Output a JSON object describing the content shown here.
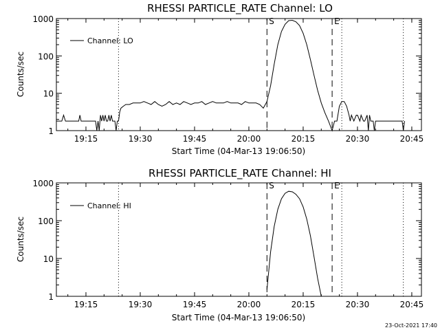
{
  "footer": {
    "timestamp": "23-Oct-2021 17:40"
  },
  "chart_data": [
    {
      "type": "line",
      "title": "RHESSI PARTICLE_RATE Channel: LO",
      "xlabel": "Start Time (04-Mar-13 19:06:50)",
      "ylabel": "Counts/sec",
      "yscale": "log",
      "ylim": [
        1,
        1000
      ],
      "xlim": [
        "19:06:50",
        "20:47:40"
      ],
      "x_ticks": [
        "19:15",
        "19:30",
        "19:45",
        "20:00",
        "20:15",
        "20:30",
        "20:45"
      ],
      "y_ticks": [
        "1",
        "10",
        "100",
        "1000"
      ],
      "legend": {
        "position": "top-left",
        "entries": [
          "Channel: LO"
        ]
      },
      "markers": [
        {
          "time": "19:24:00",
          "style": "dotted",
          "label": ""
        },
        {
          "time": "20:05:00",
          "style": "dashed",
          "label": "S"
        },
        {
          "time": "20:23:00",
          "style": "dashed",
          "label": "E"
        },
        {
          "time": "20:25:40",
          "style": "dotted",
          "label": ""
        },
        {
          "time": "20:42:40",
          "style": "dotted",
          "label": ""
        }
      ],
      "series": [
        {
          "name": "Channel: LO",
          "x": [
            "19:06:50",
            "19:08:20",
            "19:08:50",
            "19:09:20",
            "19:09:50",
            "19:13:00",
            "19:13:20",
            "19:13:40",
            "19:14:00",
            "19:17:40",
            "19:18:00",
            "19:18:20",
            "19:18:40",
            "19:19:00",
            "19:19:20",
            "19:19:40",
            "19:20:00",
            "19:20:20",
            "19:20:40",
            "19:21:00",
            "19:21:20",
            "19:21:40",
            "19:22:00",
            "19:22:20",
            "19:22:40",
            "19:23:00",
            "19:23:20",
            "19:23:40",
            "19:24:00",
            "19:24:20",
            "19:24:40",
            "19:25:20",
            "19:26:00",
            "19:27:00",
            "19:28:00",
            "19:29:00",
            "19:30:00",
            "19:31:00",
            "19:32:00",
            "19:33:00",
            "19:34:00",
            "19:35:00",
            "19:36:00",
            "19:37:00",
            "19:38:00",
            "19:39:00",
            "19:40:00",
            "19:41:00",
            "19:42:00",
            "19:43:00",
            "19:44:00",
            "19:45:00",
            "19:46:00",
            "19:47:00",
            "19:48:00",
            "19:49:00",
            "19:50:00",
            "19:51:00",
            "19:52:00",
            "19:53:00",
            "19:54:00",
            "19:55:00",
            "19:56:00",
            "19:57:00",
            "19:58:00",
            "19:59:00",
            "20:00:00",
            "20:01:00",
            "20:02:00",
            "20:03:00",
            "20:04:00",
            "20:05:00",
            "20:06:00",
            "20:07:00",
            "20:08:00",
            "20:09:00",
            "20:10:00",
            "20:11:00",
            "20:12:00",
            "20:13:00",
            "20:14:00",
            "20:15:00",
            "20:16:00",
            "20:17:00",
            "20:18:00",
            "20:19:00",
            "20:20:00",
            "20:21:00",
            "20:22:00",
            "20:23:00",
            "20:23:40",
            "20:24:20",
            "20:25:00",
            "20:25:40",
            "20:26:20",
            "20:27:00",
            "20:27:40",
            "20:28:00",
            "20:28:20",
            "20:29:00",
            "20:29:40",
            "20:30:00",
            "20:30:40",
            "20:31:00",
            "20:31:40",
            "20:32:00",
            "20:32:40",
            "20:33:00",
            "20:33:20",
            "20:33:40",
            "20:34:00",
            "20:34:20",
            "20:34:40",
            "20:35:00",
            "20:36:00",
            "20:37:00",
            "20:38:00",
            "20:39:00",
            "20:40:00",
            "20:41:00",
            "20:42:00",
            "20:42:20",
            "20:42:40",
            "20:43:00"
          ],
          "y": [
            1.8,
            1.8,
            2.6,
            1.8,
            1.8,
            1.8,
            2.6,
            1.8,
            1.8,
            1.8,
            1.0,
            1.8,
            1.0,
            2.6,
            1.8,
            2.6,
            1.8,
            2.6,
            1.8,
            1.8,
            2.6,
            1.8,
            2.6,
            1.8,
            1.8,
            1.8,
            1.0,
            1.8,
            1.8,
            3.2,
            4.0,
            4.5,
            5.0,
            5.0,
            5.5,
            5.5,
            5.5,
            6.0,
            5.5,
            5.0,
            6.0,
            5.0,
            4.5,
            5.0,
            6.0,
            5.0,
            5.5,
            5.0,
            6.0,
            5.5,
            5.0,
            5.5,
            5.5,
            6.0,
            5.0,
            5.5,
            6.0,
            5.5,
            5.5,
            5.5,
            6.0,
            5.5,
            5.5,
            5.5,
            5.0,
            6.0,
            5.5,
            5.5,
            5.5,
            5.0,
            4.0,
            6.0,
            16,
            60,
            200,
            450,
            700,
            880,
            900,
            820,
            650,
            400,
            200,
            80,
            30,
            12,
            5.5,
            3.0,
            1.8,
            1.0,
            1.8,
            1.8,
            4.5,
            6.0,
            6.0,
            4.5,
            2.6,
            1.8,
            2.6,
            1.8,
            2.6,
            2.6,
            1.8,
            2.6,
            1.8,
            1.8,
            2.6,
            1.0,
            2.6,
            1.8,
            1.8,
            1.8,
            1.0,
            1.8,
            1.8,
            1.8,
            1.8,
            1.8,
            1.8,
            1.8,
            1.8,
            1.8,
            1.0,
            1.8
          ]
        }
      ]
    },
    {
      "type": "line",
      "title": "RHESSI PARTICLE_RATE Channel: HI",
      "xlabel": "Start Time (04-Mar-13 19:06:50)",
      "ylabel": "Counts/sec",
      "yscale": "log",
      "ylim": [
        1,
        1000
      ],
      "xlim": [
        "19:06:50",
        "20:47:40"
      ],
      "x_ticks": [
        "19:15",
        "19:30",
        "19:45",
        "20:00",
        "20:15",
        "20:30",
        "20:45"
      ],
      "y_ticks": [
        "1",
        "10",
        "100",
        "1000"
      ],
      "legend": {
        "position": "top-left",
        "entries": [
          "Channel: HI"
        ]
      },
      "markers": [
        {
          "time": "19:24:00",
          "style": "dotted",
          "label": ""
        },
        {
          "time": "20:05:00",
          "style": "dashed",
          "label": "S"
        },
        {
          "time": "20:23:00",
          "style": "dashed",
          "label": "E"
        },
        {
          "time": "20:25:40",
          "style": "dotted",
          "label": ""
        },
        {
          "time": "20:42:40",
          "style": "dotted",
          "label": ""
        }
      ],
      "series": [
        {
          "name": "Channel: HI",
          "x": [
            "20:05:00",
            "20:06:00",
            "20:07:00",
            "20:08:00",
            "20:09:00",
            "20:10:00",
            "20:11:00",
            "20:12:00",
            "20:13:00",
            "20:14:00",
            "20:15:00",
            "20:16:00",
            "20:17:00",
            "20:18:00",
            "20:19:00",
            "20:20:00"
          ],
          "y": [
            1.5,
            15,
            70,
            200,
            380,
            530,
            600,
            580,
            500,
            380,
            230,
            110,
            40,
            11,
            3.0,
            1.0
          ]
        }
      ]
    }
  ]
}
